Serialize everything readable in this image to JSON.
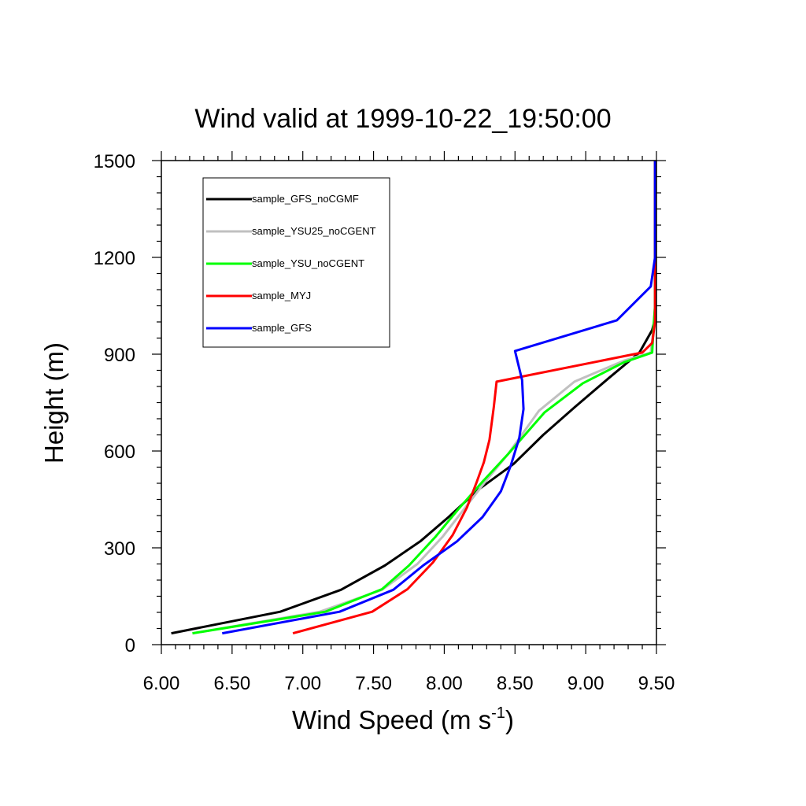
{
  "chart_data": {
    "type": "line",
    "title": "Wind valid at 1999-10-22_19:50:00",
    "xlabel": "Wind Speed (m s",
    "xlabel_sup": "-1",
    "xlabel_close": ")",
    "ylabel": "Height (m)",
    "xlim": [
      6.0,
      9.5
    ],
    "ylim": [
      0,
      1500
    ],
    "xticks": [
      6.0,
      6.5,
      7.0,
      7.5,
      8.0,
      8.5,
      9.0,
      9.5
    ],
    "xtick_labels": [
      "6.00",
      "6.50",
      "7.00",
      "7.50",
      "8.00",
      "8.50",
      "9.00",
      "9.50"
    ],
    "yticks": [
      0,
      300,
      600,
      900,
      1200,
      1500
    ],
    "ytick_labels": [
      "0",
      "300",
      "600",
      "900",
      "1200",
      "1500"
    ],
    "legend_position": "top-left",
    "series": [
      {
        "name": "sample_GFS_noCGMF",
        "color": "#000000",
        "points": [
          [
            6.07,
            35
          ],
          [
            6.84,
            102
          ],
          [
            7.27,
            170
          ],
          [
            7.58,
            245
          ],
          [
            7.83,
            320
          ],
          [
            8.03,
            395
          ],
          [
            8.24,
            480
          ],
          [
            8.49,
            560
          ],
          [
            8.7,
            650
          ],
          [
            8.92,
            735
          ],
          [
            9.16,
            825
          ],
          [
            9.38,
            905
          ],
          [
            9.47,
            975
          ],
          [
            9.49,
            1010
          ],
          [
            9.49,
            1100
          ],
          [
            9.49,
            1200
          ],
          [
            9.49,
            1300
          ],
          [
            9.49,
            1400
          ],
          [
            9.49,
            1500
          ]
        ]
      },
      {
        "name": "sample_YSU25_noCGENT",
        "color": "#c0c0c0",
        "points": [
          [
            6.22,
            35
          ],
          [
            7.12,
            102
          ],
          [
            7.56,
            170
          ],
          [
            7.81,
            250
          ],
          [
            7.99,
            335
          ],
          [
            8.14,
            420
          ],
          [
            8.29,
            505
          ],
          [
            8.45,
            590
          ],
          [
            8.67,
            725
          ],
          [
            8.92,
            815
          ],
          [
            9.27,
            880
          ],
          [
            9.46,
            905
          ],
          [
            9.48,
            980
          ],
          [
            9.49,
            1050
          ],
          [
            9.49,
            1150
          ],
          [
            9.49,
            1300
          ],
          [
            9.49,
            1400
          ],
          [
            9.49,
            1500
          ]
        ]
      },
      {
        "name": "sample_YSU_noCGENT",
        "color": "#00ff00",
        "points": [
          [
            6.22,
            35
          ],
          [
            7.16,
            102
          ],
          [
            7.56,
            172
          ],
          [
            7.75,
            245
          ],
          [
            7.94,
            335
          ],
          [
            8.1,
            420
          ],
          [
            8.27,
            505
          ],
          [
            8.45,
            590
          ],
          [
            8.71,
            720
          ],
          [
            8.98,
            810
          ],
          [
            9.27,
            875
          ],
          [
            9.47,
            905
          ],
          [
            9.48,
            990
          ],
          [
            9.49,
            1050
          ],
          [
            9.49,
            1200
          ],
          [
            9.49,
            1300
          ],
          [
            9.49,
            1400
          ],
          [
            9.49,
            1500
          ]
        ]
      },
      {
        "name": "sample_MYJ",
        "color": "#ff0000",
        "points": [
          [
            6.93,
            35
          ],
          [
            7.49,
            102
          ],
          [
            7.74,
            172
          ],
          [
            7.92,
            255
          ],
          [
            8.06,
            340
          ],
          [
            8.16,
            425
          ],
          [
            8.23,
            505
          ],
          [
            8.28,
            565
          ],
          [
            8.32,
            635
          ],
          [
            8.35,
            735
          ],
          [
            8.37,
            815
          ],
          [
            9.4,
            905
          ],
          [
            9.47,
            935
          ],
          [
            9.49,
            1000
          ],
          [
            9.49,
            1100
          ],
          [
            9.49,
            1300
          ],
          [
            9.49,
            1500
          ]
        ]
      },
      {
        "name": "sample_GFS",
        "color": "#0000ff",
        "points": [
          [
            6.43,
            35
          ],
          [
            7.26,
            102
          ],
          [
            7.64,
            170
          ],
          [
            7.85,
            245
          ],
          [
            8.09,
            320
          ],
          [
            8.27,
            395
          ],
          [
            8.4,
            475
          ],
          [
            8.47,
            555
          ],
          [
            8.53,
            640
          ],
          [
            8.56,
            730
          ],
          [
            8.55,
            820
          ],
          [
            8.5,
            910
          ],
          [
            9.22,
            1005
          ],
          [
            9.46,
            1110
          ],
          [
            9.49,
            1200
          ],
          [
            9.49,
            1300
          ],
          [
            9.49,
            1400
          ],
          [
            9.49,
            1500
          ]
        ]
      }
    ]
  }
}
